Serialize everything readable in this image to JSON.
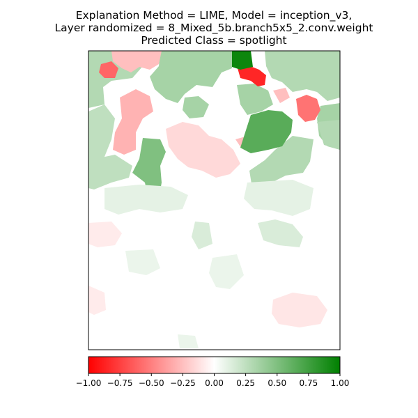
{
  "chart_data": {
    "type": "heatmap",
    "title_lines": [
      "Explanation Method = LIME, Model = inception_v3,",
      "Layer randomized = 8_Mixed_5b.branch5x5_2.conv.weight",
      "Predicted Class = spotlight"
    ],
    "colormap": {
      "min_color": "#ff0000",
      "mid_color": "#ffffff",
      "max_color": "#008000"
    },
    "value_range": [
      -1.0,
      1.0
    ],
    "colorbar_ticks": [
      -1.0,
      -0.75,
      -0.5,
      -0.25,
      0.0,
      0.25,
      0.5,
      0.75,
      1.0
    ],
    "colorbar_tick_labels": [
      "−1.00",
      "−0.75",
      "−0.50",
      "−0.25",
      "0.00",
      "0.25",
      "0.50",
      "0.75",
      "1.00"
    ],
    "xticks": [],
    "yticks": [],
    "segments": [
      {
        "name": "top-center-strong-positive",
        "value": 0.95
      },
      {
        "name": "top-center-strong-negative",
        "value": -0.85
      },
      {
        "name": "right-negative-blob",
        "value": -0.55
      },
      {
        "name": "top-left-negative",
        "value": -0.6
      },
      {
        "name": "top-left-light-negative",
        "value": -0.25
      },
      {
        "name": "left-negative-region",
        "value": -0.3
      },
      {
        "name": "center-positive-blob",
        "value": 0.65
      },
      {
        "name": "center-left-positive-column",
        "value": 0.5
      },
      {
        "name": "upper-left-light-positive",
        "value": 0.3
      },
      {
        "name": "upper-center-positive",
        "value": 0.35
      },
      {
        "name": "upper-right-positive",
        "value": 0.3
      },
      {
        "name": "right-edge-positive",
        "value": 0.35
      },
      {
        "name": "middle-right-positive",
        "value": 0.3
      },
      {
        "name": "lower-right-light-positive",
        "value": 0.15
      },
      {
        "name": "left-edge-positive",
        "value": 0.25
      },
      {
        "name": "center-light-negative",
        "value": -0.15
      },
      {
        "name": "middle-faint-positive",
        "value": 0.1
      },
      {
        "name": "lower-faint-positive",
        "value": 0.08
      },
      {
        "name": "bottom-right-faint-negative",
        "value": -0.1
      },
      {
        "name": "lower-left-faint-negative",
        "value": -0.08
      }
    ]
  }
}
